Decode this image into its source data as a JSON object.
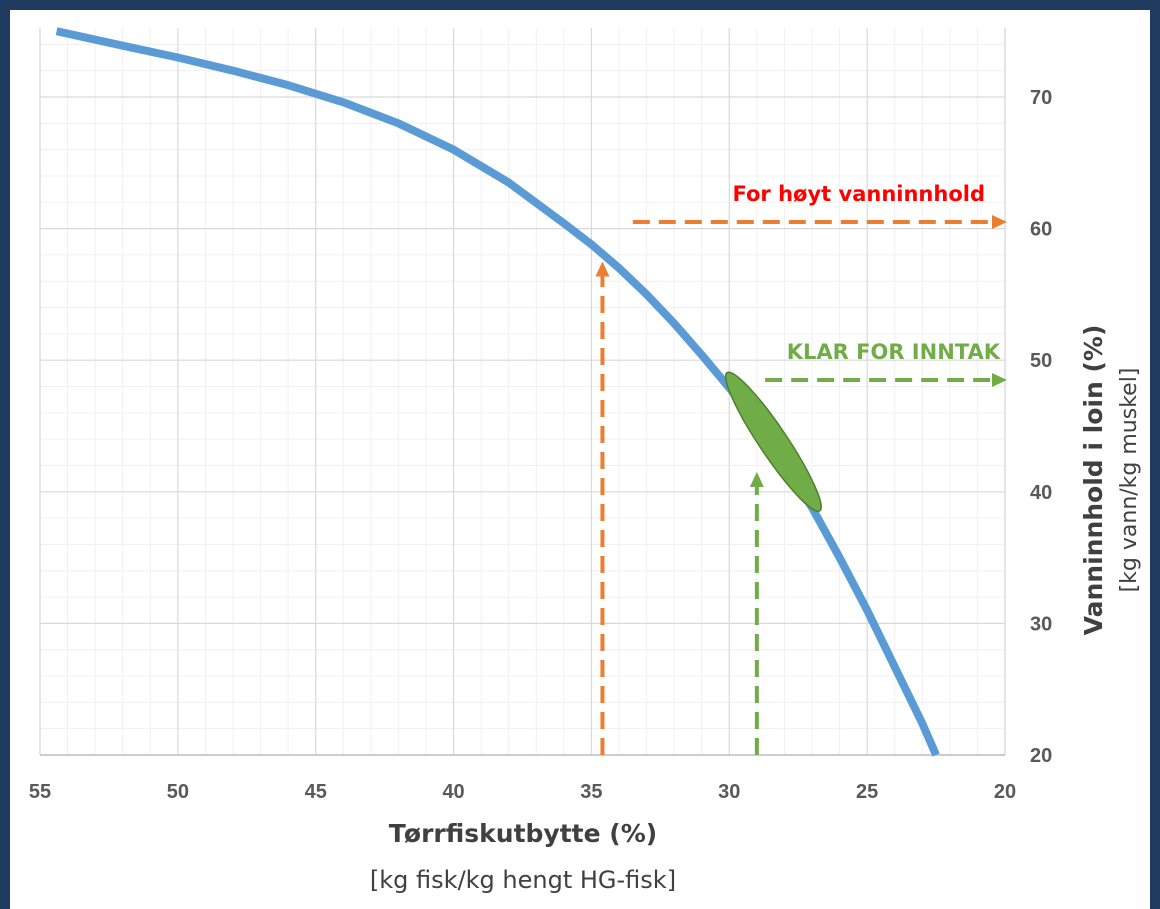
{
  "chart_data": {
    "type": "line",
    "xlabel": "Tørrfiskutbytte (%)",
    "xlabel_sub": "[kg fisk/kg hengt HG-fisk]",
    "ylabel": "Vanninnhold i loin (%)",
    "ylabel_sub": "[kg vann/kg muskel]",
    "xlim": [
      55,
      20
    ],
    "ylim": [
      20,
      75
    ],
    "x_reversed": true,
    "y_axis_position": "right",
    "x_ticks": [
      55,
      50,
      45,
      40,
      35,
      30,
      25,
      20
    ],
    "y_ticks": [
      20,
      30,
      40,
      50,
      60,
      70
    ],
    "grid": "major and minor",
    "series": [
      {
        "color": "#5b9bd5",
        "x": [
          54.4,
          52,
          50,
          48,
          46,
          44,
          42,
          40,
          38,
          36,
          35,
          34,
          33,
          32,
          31,
          30,
          29,
          28,
          27,
          26,
          25,
          24,
          23,
          22.5
        ],
        "y": [
          75,
          73.9,
          73.0,
          72.0,
          70.9,
          69.6,
          68.0,
          66.0,
          63.5,
          60.4,
          58.8,
          57.0,
          55.0,
          52.8,
          50.4,
          47.9,
          45.2,
          42.1,
          38.8,
          35.0,
          31.0,
          26.7,
          22.4,
          20
        ]
      }
    ],
    "annotations": [
      {
        "text": "For høyt vanninnhold",
        "color": "#ff0000",
        "arrow_color": "#ed7d31"
      },
      {
        "text": "KLAR FOR INNTAK",
        "color": "#70ad47",
        "arrow_color": "#70ad47"
      }
    ],
    "arrows": [
      {
        "type": "vertical-up",
        "color": "#ed7d31",
        "x": 34.6,
        "y_from": 20,
        "y_to": 57.5
      },
      {
        "type": "horizontal-right",
        "color": "#ed7d31",
        "y": 60.5,
        "x_from": 33.5,
        "x_to": 20
      },
      {
        "type": "vertical-up",
        "color": "#70ad47",
        "x": 29.0,
        "y_from": 20,
        "y_to": 41.5
      },
      {
        "type": "horizontal-right",
        "color": "#70ad47",
        "y": 48.5,
        "x_from": 28.7,
        "x_to": 20
      }
    ],
    "highlight_region": {
      "shape": "ellipse",
      "color": "#70ad47",
      "x_range": [
        26.8,
        30.0
      ],
      "y_range": [
        38.8,
        48.8
      ]
    }
  }
}
